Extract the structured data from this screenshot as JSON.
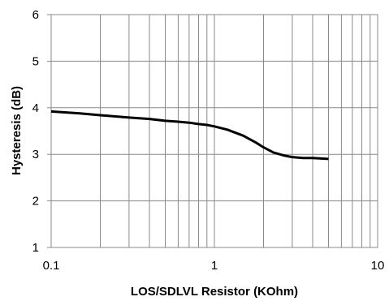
{
  "chart_data": {
    "type": "line",
    "title": "",
    "xlabel": "LOS/SDLVL Resistor (KOhm)",
    "ylabel": "Hysteresis (dB)",
    "x_scale": "log",
    "xlim": [
      0.1,
      10
    ],
    "ylim": [
      1,
      6
    ],
    "grid": true,
    "x_ticks": [
      "0.1",
      "1",
      "10"
    ],
    "y_ticks": [
      "1",
      "2",
      "3",
      "4",
      "5",
      "6"
    ],
    "series": [
      {
        "x": [
          0.1,
          0.15,
          0.2,
          0.3,
          0.4,
          0.5,
          0.6,
          0.7,
          0.8,
          0.9,
          1.0,
          1.2,
          1.5,
          1.8,
          2.0,
          2.3,
          2.7,
          3.0,
          3.5,
          4.0,
          5.0
        ],
        "y": [
          3.92,
          3.88,
          3.84,
          3.79,
          3.76,
          3.72,
          3.7,
          3.68,
          3.65,
          3.63,
          3.6,
          3.53,
          3.4,
          3.25,
          3.15,
          3.04,
          2.97,
          2.94,
          2.92,
          2.92,
          2.9
        ]
      }
    ]
  }
}
